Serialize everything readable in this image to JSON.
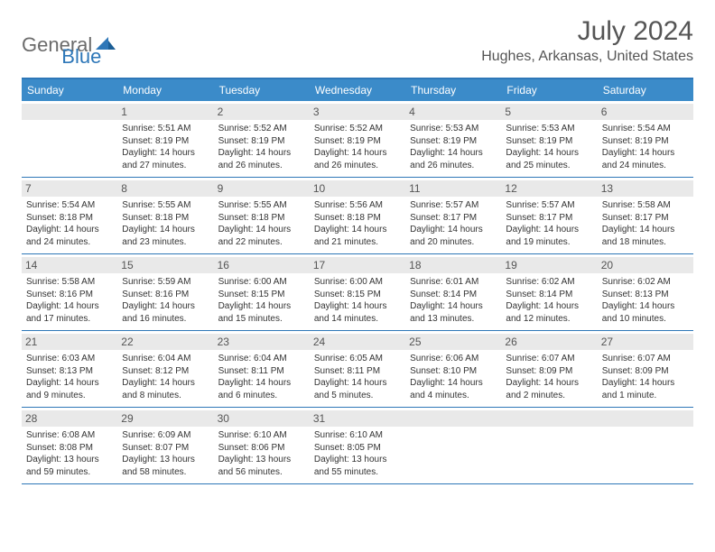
{
  "logo": {
    "part1": "General",
    "part2": "Blue"
  },
  "title": "July 2024",
  "location": "Hughes, Arkansas, United States",
  "colors": {
    "accent": "#2e77b8",
    "header_bg": "#3b8bc9",
    "daynum_bg": "#e9e9e9",
    "text": "#333333",
    "muted": "#555555"
  },
  "dayHeaders": [
    "Sunday",
    "Monday",
    "Tuesday",
    "Wednesday",
    "Thursday",
    "Friday",
    "Saturday"
  ],
  "weeks": [
    [
      {
        "day": "",
        "sunrise": "",
        "sunset": "",
        "daylight": ""
      },
      {
        "day": "1",
        "sunrise": "5:51 AM",
        "sunset": "8:19 PM",
        "daylight": "14 hours and 27 minutes."
      },
      {
        "day": "2",
        "sunrise": "5:52 AM",
        "sunset": "8:19 PM",
        "daylight": "14 hours and 26 minutes."
      },
      {
        "day": "3",
        "sunrise": "5:52 AM",
        "sunset": "8:19 PM",
        "daylight": "14 hours and 26 minutes."
      },
      {
        "day": "4",
        "sunrise": "5:53 AM",
        "sunset": "8:19 PM",
        "daylight": "14 hours and 26 minutes."
      },
      {
        "day": "5",
        "sunrise": "5:53 AM",
        "sunset": "8:19 PM",
        "daylight": "14 hours and 25 minutes."
      },
      {
        "day": "6",
        "sunrise": "5:54 AM",
        "sunset": "8:19 PM",
        "daylight": "14 hours and 24 minutes."
      }
    ],
    [
      {
        "day": "7",
        "sunrise": "5:54 AM",
        "sunset": "8:18 PM",
        "daylight": "14 hours and 24 minutes."
      },
      {
        "day": "8",
        "sunrise": "5:55 AM",
        "sunset": "8:18 PM",
        "daylight": "14 hours and 23 minutes."
      },
      {
        "day": "9",
        "sunrise": "5:55 AM",
        "sunset": "8:18 PM",
        "daylight": "14 hours and 22 minutes."
      },
      {
        "day": "10",
        "sunrise": "5:56 AM",
        "sunset": "8:18 PM",
        "daylight": "14 hours and 21 minutes."
      },
      {
        "day": "11",
        "sunrise": "5:57 AM",
        "sunset": "8:17 PM",
        "daylight": "14 hours and 20 minutes."
      },
      {
        "day": "12",
        "sunrise": "5:57 AM",
        "sunset": "8:17 PM",
        "daylight": "14 hours and 19 minutes."
      },
      {
        "day": "13",
        "sunrise": "5:58 AM",
        "sunset": "8:17 PM",
        "daylight": "14 hours and 18 minutes."
      }
    ],
    [
      {
        "day": "14",
        "sunrise": "5:58 AM",
        "sunset": "8:16 PM",
        "daylight": "14 hours and 17 minutes."
      },
      {
        "day": "15",
        "sunrise": "5:59 AM",
        "sunset": "8:16 PM",
        "daylight": "14 hours and 16 minutes."
      },
      {
        "day": "16",
        "sunrise": "6:00 AM",
        "sunset": "8:15 PM",
        "daylight": "14 hours and 15 minutes."
      },
      {
        "day": "17",
        "sunrise": "6:00 AM",
        "sunset": "8:15 PM",
        "daylight": "14 hours and 14 minutes."
      },
      {
        "day": "18",
        "sunrise": "6:01 AM",
        "sunset": "8:14 PM",
        "daylight": "14 hours and 13 minutes."
      },
      {
        "day": "19",
        "sunrise": "6:02 AM",
        "sunset": "8:14 PM",
        "daylight": "14 hours and 12 minutes."
      },
      {
        "day": "20",
        "sunrise": "6:02 AM",
        "sunset": "8:13 PM",
        "daylight": "14 hours and 10 minutes."
      }
    ],
    [
      {
        "day": "21",
        "sunrise": "6:03 AM",
        "sunset": "8:13 PM",
        "daylight": "14 hours and 9 minutes."
      },
      {
        "day": "22",
        "sunrise": "6:04 AM",
        "sunset": "8:12 PM",
        "daylight": "14 hours and 8 minutes."
      },
      {
        "day": "23",
        "sunrise": "6:04 AM",
        "sunset": "8:11 PM",
        "daylight": "14 hours and 6 minutes."
      },
      {
        "day": "24",
        "sunrise": "6:05 AM",
        "sunset": "8:11 PM",
        "daylight": "14 hours and 5 minutes."
      },
      {
        "day": "25",
        "sunrise": "6:06 AM",
        "sunset": "8:10 PM",
        "daylight": "14 hours and 4 minutes."
      },
      {
        "day": "26",
        "sunrise": "6:07 AM",
        "sunset": "8:09 PM",
        "daylight": "14 hours and 2 minutes."
      },
      {
        "day": "27",
        "sunrise": "6:07 AM",
        "sunset": "8:09 PM",
        "daylight": "14 hours and 1 minute."
      }
    ],
    [
      {
        "day": "28",
        "sunrise": "6:08 AM",
        "sunset": "8:08 PM",
        "daylight": "13 hours and 59 minutes."
      },
      {
        "day": "29",
        "sunrise": "6:09 AM",
        "sunset": "8:07 PM",
        "daylight": "13 hours and 58 minutes."
      },
      {
        "day": "30",
        "sunrise": "6:10 AM",
        "sunset": "8:06 PM",
        "daylight": "13 hours and 56 minutes."
      },
      {
        "day": "31",
        "sunrise": "6:10 AM",
        "sunset": "8:05 PM",
        "daylight": "13 hours and 55 minutes."
      },
      {
        "day": "",
        "sunrise": "",
        "sunset": "",
        "daylight": ""
      },
      {
        "day": "",
        "sunrise": "",
        "sunset": "",
        "daylight": ""
      },
      {
        "day": "",
        "sunrise": "",
        "sunset": "",
        "daylight": ""
      }
    ]
  ],
  "labels": {
    "sunrise": "Sunrise:",
    "sunset": "Sunset:",
    "daylight": "Daylight:"
  }
}
